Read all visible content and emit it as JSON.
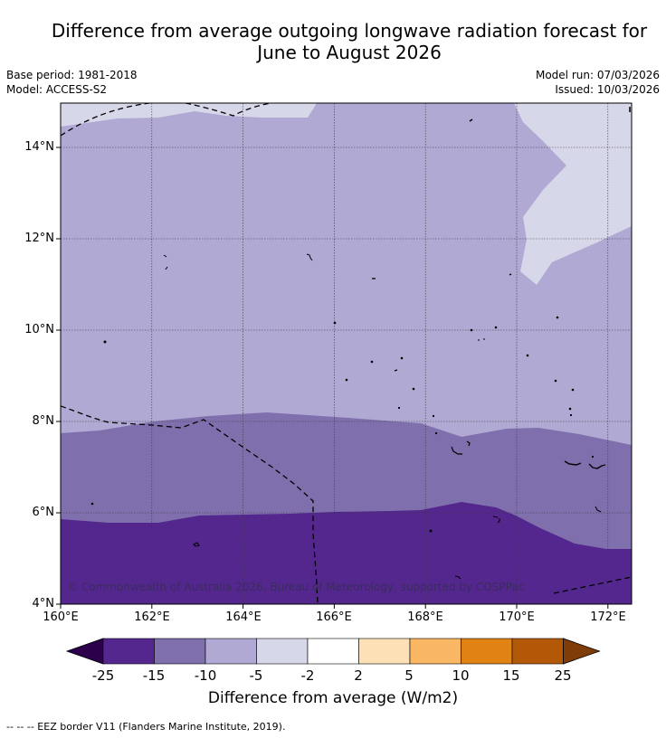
{
  "title_line1": "Difference from average outgoing longwave radiation forecast for",
  "title_line2": "June to August 2026",
  "base_period": "Base period: 1981-2018",
  "model": "Model: ACCESS-S2",
  "model_run": "Model run: 07/03/2026",
  "issued": "Issued: 10/03/2026",
  "copyright": "© Commonwealth of Australia 2026, Bureau of Meteorology, supported by COSPPac",
  "lat_ticks": [
    "14°N",
    "12°N",
    "10°N",
    "8°N",
    "6°N",
    "4°N"
  ],
  "lon_ticks": [
    "160°E",
    "162°E",
    "164°E",
    "166°E",
    "168°E",
    "170°E",
    "172°E"
  ],
  "colorbar": {
    "title": "Difference from average (W/m2)",
    "labels": [
      "-25",
      "-15",
      "-10",
      "-5",
      "-2",
      "2",
      "5",
      "10",
      "15",
      "25"
    ],
    "colors": [
      "#54278f",
      "#7f70ad",
      "#b0a9d3",
      "#d7d7ea",
      "#ffffff",
      "#fde0b6",
      "#f9b763",
      "#e08214",
      "#b35806"
    ],
    "low_extend": "#2d004b",
    "high_extend": "#7f3b08"
  },
  "footer": "--  --  -- EEZ border V11 (Flanders Marine Institute, 2019)."
}
